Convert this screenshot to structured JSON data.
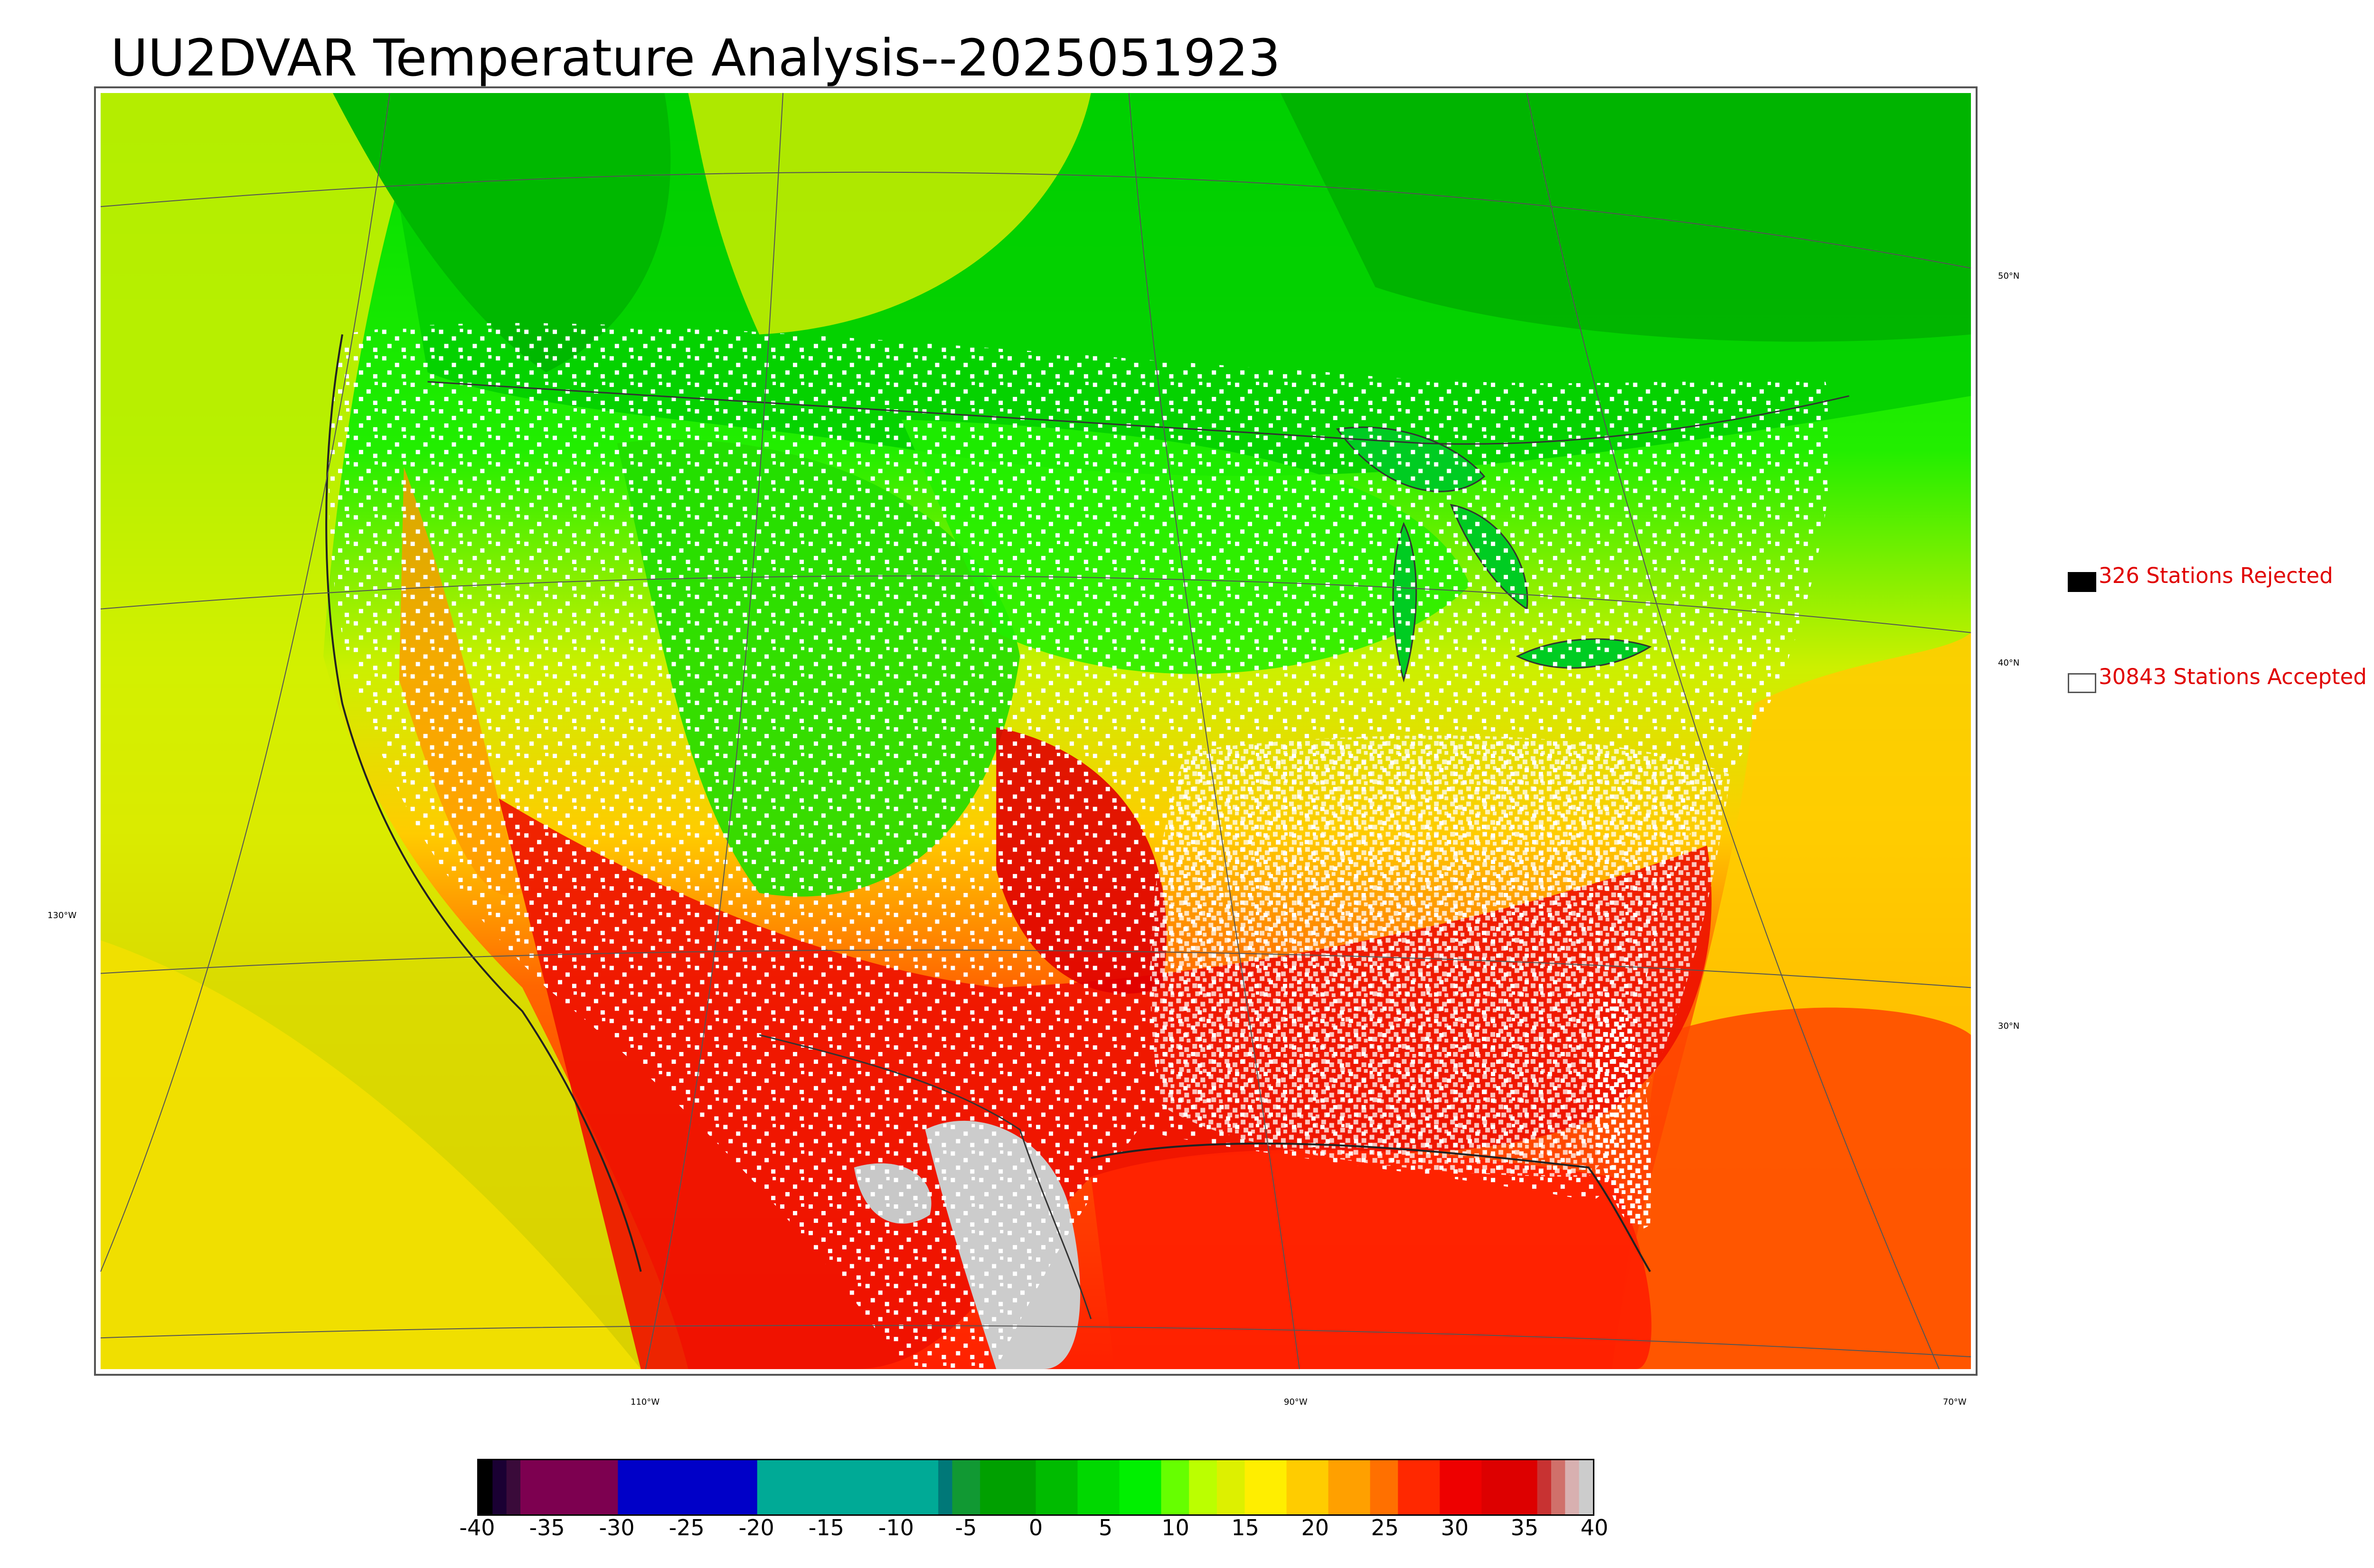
{
  "title": "UU2DVAR Temperature Analysis--2025051923",
  "legend": {
    "rejected": {
      "label": "326 Stations Rejected",
      "swatch_color": "#000000"
    },
    "accepted": {
      "label": "30843 Stations Accepted",
      "swatch_color": "#ffffff"
    }
  },
  "map": {
    "longitude_labels": [
      "130°W",
      "110°W",
      "90°W",
      "70°W"
    ],
    "latitude_labels": [
      "50°N",
      "40°N",
      "30°N"
    ]
  },
  "colorbar": {
    "ticks": [
      "-40",
      "-35",
      "-30",
      "-25",
      "-20",
      "-15",
      "-10",
      "-5",
      "0",
      "5",
      "10",
      "15",
      "20",
      "25",
      "30",
      "35",
      "40"
    ],
    "min": -40,
    "max": 40,
    "segments": [
      {
        "from": -40,
        "to": -39,
        "color": "#000000"
      },
      {
        "from": -39,
        "to": -38,
        "color": "#1a0033"
      },
      {
        "from": -38,
        "to": -37,
        "color": "#3a0a3a"
      },
      {
        "from": -37,
        "to": -30,
        "color": "#7d0050"
      },
      {
        "from": -30,
        "to": -20,
        "color": "#0000c8"
      },
      {
        "from": -20,
        "to": -7,
        "color": "#00aa96"
      },
      {
        "from": -7,
        "to": -6,
        "color": "#007878"
      },
      {
        "from": -6,
        "to": -4,
        "color": "#119933"
      },
      {
        "from": -4,
        "to": 0,
        "color": "#00a000"
      },
      {
        "from": 0,
        "to": 3,
        "color": "#00bb00"
      },
      {
        "from": 3,
        "to": 6,
        "color": "#00d800"
      },
      {
        "from": 6,
        "to": 9,
        "color": "#00f000"
      },
      {
        "from": 9,
        "to": 11,
        "color": "#66ff00"
      },
      {
        "from": 11,
        "to": 13,
        "color": "#bbff00"
      },
      {
        "from": 13,
        "to": 15,
        "color": "#ddf000"
      },
      {
        "from": 15,
        "to": 18,
        "color": "#ffee00"
      },
      {
        "from": 18,
        "to": 21,
        "color": "#ffcc00"
      },
      {
        "from": 21,
        "to": 24,
        "color": "#ffa000"
      },
      {
        "from": 24,
        "to": 26,
        "color": "#ff7000"
      },
      {
        "from": 26,
        "to": 29,
        "color": "#ff2800"
      },
      {
        "from": 29,
        "to": 32,
        "color": "#ee0000"
      },
      {
        "from": 32,
        "to": 36,
        "color": "#dd0000"
      },
      {
        "from": 36,
        "to": 37,
        "color": "#c83232"
      },
      {
        "from": 37,
        "to": 38,
        "color": "#d0706a"
      },
      {
        "from": 38,
        "to": 39,
        "color": "#d8b0b0"
      },
      {
        "from": 39,
        "to": 40,
        "color": "#cccccc"
      }
    ]
  }
}
